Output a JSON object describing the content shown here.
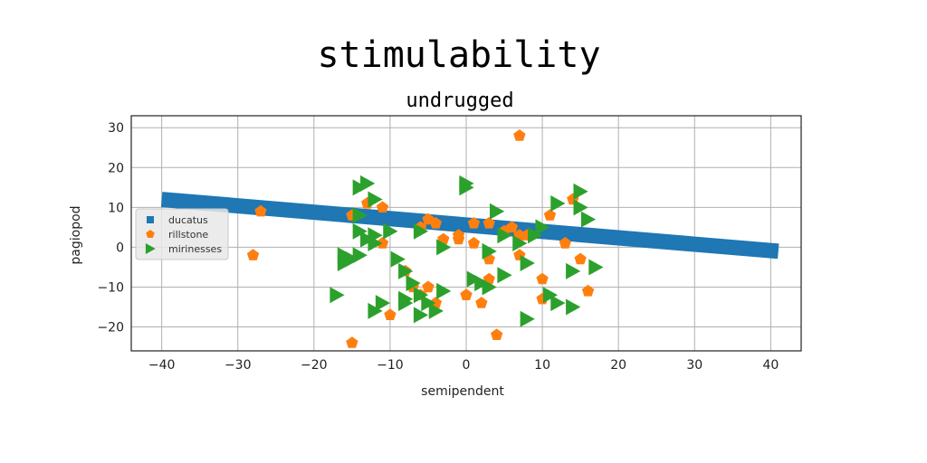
{
  "chart_data": {
    "type": "scatter",
    "suptitle": "stimulability",
    "title": "undrugged",
    "xlabel": "semipendent",
    "ylabel": "pagiopod",
    "xlim": [
      -44,
      44
    ],
    "ylim": [
      -26,
      33
    ],
    "xticks": [
      -40,
      -30,
      -20,
      -10,
      0,
      10,
      20,
      30,
      40
    ],
    "yticks": [
      -20,
      -10,
      0,
      10,
      20,
      30
    ],
    "grid": true,
    "legend_position": "center-left",
    "series": [
      {
        "name": "ducatus",
        "kind": "line",
        "color": "#1f77b4",
        "marker": "square",
        "x": [
          -40,
          41
        ],
        "y": [
          12,
          -1
        ]
      },
      {
        "name": "rillstone",
        "kind": "scatter",
        "color": "#ff7f0e",
        "marker": "pentagon",
        "points": [
          [
            -27,
            9
          ],
          [
            -28,
            -2
          ],
          [
            -15,
            8
          ],
          [
            -13,
            11
          ],
          [
            -11,
            10
          ],
          [
            -11,
            1
          ],
          [
            -10,
            -17
          ],
          [
            -8,
            -6
          ],
          [
            -7,
            -10
          ],
          [
            -6,
            5
          ],
          [
            -6,
            -12
          ],
          [
            -5,
            7
          ],
          [
            -5,
            -10
          ],
          [
            -4,
            6
          ],
          [
            -4,
            -14
          ],
          [
            -3,
            2
          ],
          [
            -1,
            2
          ],
          [
            -1,
            3
          ],
          [
            0,
            -12
          ],
          [
            1,
            1
          ],
          [
            1,
            6
          ],
          [
            2,
            -14
          ],
          [
            3,
            -3
          ],
          [
            3,
            -8
          ],
          [
            3,
            6
          ],
          [
            4,
            -22
          ],
          [
            5,
            4
          ],
          [
            6,
            5
          ],
          [
            7,
            3
          ],
          [
            7,
            28
          ],
          [
            7,
            -2
          ],
          [
            8,
            3
          ],
          [
            10,
            -13
          ],
          [
            10,
            -8
          ],
          [
            11,
            8
          ],
          [
            13,
            1
          ],
          [
            14,
            12
          ],
          [
            15,
            -3
          ],
          [
            16,
            -11
          ],
          [
            -15,
            -24
          ]
        ]
      },
      {
        "name": "mirinesses",
        "kind": "scatter",
        "color": "#2ca02c",
        "marker": "triangle-right",
        "points": [
          [
            -14,
            15
          ],
          [
            -13,
            16
          ],
          [
            -12,
            12
          ],
          [
            -14,
            8
          ],
          [
            -14,
            4
          ],
          [
            -13,
            2
          ],
          [
            -12,
            3
          ],
          [
            -16,
            -4
          ],
          [
            -16,
            -2
          ],
          [
            -15,
            -3
          ],
          [
            -14,
            -2
          ],
          [
            -17,
            -12
          ],
          [
            -12,
            -16
          ],
          [
            -11,
            -14
          ],
          [
            -9,
            -3
          ],
          [
            -8,
            -6
          ],
          [
            -7,
            -9
          ],
          [
            -8,
            -13
          ],
          [
            -8,
            -14
          ],
          [
            -6,
            -12
          ],
          [
            -6,
            -17
          ],
          [
            -6,
            4
          ],
          [
            -5,
            -14
          ],
          [
            -4,
            -16
          ],
          [
            -3,
            0
          ],
          [
            -3,
            -11
          ],
          [
            0,
            16
          ],
          [
            0,
            15
          ],
          [
            1,
            -8
          ],
          [
            2,
            -9
          ],
          [
            3,
            -1
          ],
          [
            3,
            -10
          ],
          [
            4,
            9
          ],
          [
            5,
            3
          ],
          [
            5,
            -7
          ],
          [
            7,
            1
          ],
          [
            8,
            -4
          ],
          [
            8,
            -18
          ],
          [
            9,
            3
          ],
          [
            10,
            5
          ],
          [
            11,
            -12
          ],
          [
            12,
            -14
          ],
          [
            12,
            11
          ],
          [
            14,
            -6
          ],
          [
            14,
            -15
          ],
          [
            15,
            10
          ],
          [
            16,
            7
          ],
          [
            15,
            14
          ],
          [
            17,
            -5
          ],
          [
            -12,
            1
          ],
          [
            -10,
            4
          ]
        ]
      }
    ]
  }
}
